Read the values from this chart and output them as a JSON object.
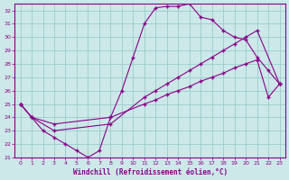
{
  "xlabel": "Windchill (Refroidissement éolien,°C)",
  "bg_color": "#cce8e8",
  "line_color": "#880088",
  "grid_color": "#99cccc",
  "ylim": [
    21,
    32.5
  ],
  "xlim": [
    -0.5,
    23.5
  ],
  "yticks": [
    21,
    22,
    23,
    24,
    25,
    26,
    27,
    28,
    29,
    30,
    31,
    32
  ],
  "xticks": [
    0,
    1,
    2,
    3,
    4,
    5,
    6,
    7,
    8,
    9,
    10,
    11,
    12,
    13,
    14,
    15,
    16,
    17,
    18,
    19,
    20,
    21,
    22,
    23
  ],
  "line1_x": [
    0,
    1,
    2,
    3,
    4,
    5,
    6,
    7,
    8,
    9,
    10,
    11,
    12,
    13,
    14,
    15,
    16,
    17,
    18,
    19,
    20,
    21,
    22,
    23
  ],
  "line1_y": [
    25,
    24,
    23,
    22.5,
    22,
    21.5,
    21,
    21.5,
    24,
    26,
    28.5,
    31,
    32.2,
    32.3,
    32.3,
    32.5,
    31.5,
    31.3,
    30.5,
    30,
    29.8,
    28.5,
    27.5,
    26.5
  ],
  "line2_x": [
    0,
    1,
    3,
    8,
    11,
    12,
    13,
    14,
    15,
    16,
    17,
    18,
    19,
    20,
    21,
    23
  ],
  "line2_y": [
    25,
    24,
    23,
    23.5,
    25.5,
    26,
    26.5,
    27,
    27.5,
    28,
    28.5,
    29,
    29.5,
    30,
    30.5,
    26.5
  ],
  "line3_x": [
    0,
    1,
    3,
    8,
    11,
    12,
    13,
    14,
    15,
    16,
    17,
    18,
    19,
    20,
    21,
    22,
    23
  ],
  "line3_y": [
    25,
    24,
    23.5,
    24,
    25,
    25.3,
    25.7,
    26,
    26.3,
    26.7,
    27,
    27.3,
    27.7,
    28,
    28.3,
    25.5,
    26.5
  ]
}
